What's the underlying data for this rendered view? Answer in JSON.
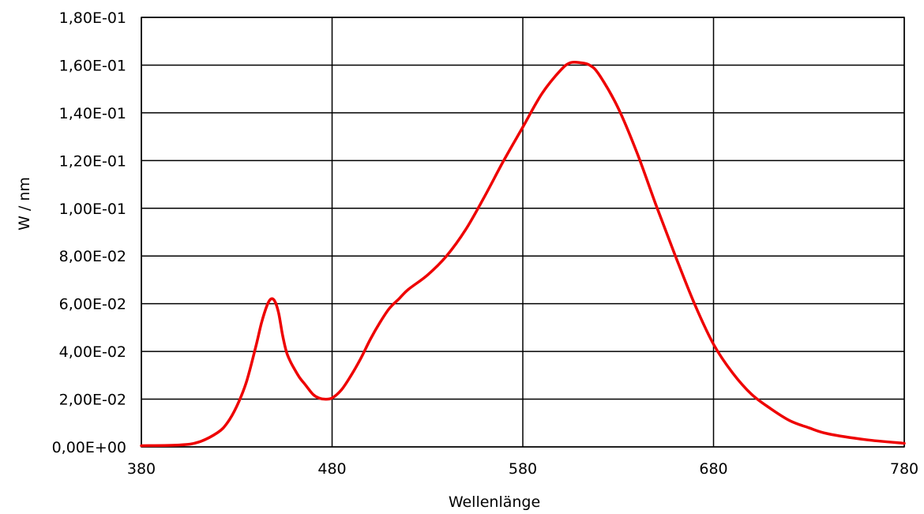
{
  "chart_data": {
    "type": "line",
    "title": "",
    "xlabel": "Wellenlänge",
    "ylabel": "W / nm",
    "xlim": [
      380,
      780
    ],
    "ylim": [
      0,
      0.18
    ],
    "x_ticks": [
      380,
      480,
      580,
      680,
      780
    ],
    "x_tick_labels": [
      "380",
      "480",
      "580",
      "680",
      "780"
    ],
    "y_ticks": [
      0,
      0.02,
      0.04,
      0.06,
      0.08,
      0.1,
      0.12,
      0.14,
      0.16,
      0.18
    ],
    "y_tick_labels": [
      "0,00E+00",
      "2,00E-02",
      "4,00E-02",
      "6,00E-02",
      "8,00E-02",
      "1,00E-01",
      "1,20E-01",
      "1,40E-01",
      "1,60E-01",
      "1,80E-01"
    ],
    "grid": true,
    "legend": "none",
    "series": [
      {
        "color": "#ee0000",
        "x": [
          380,
          400,
          410,
          420,
          425,
          430,
          435,
          440,
          443,
          446,
          448,
          450,
          452,
          454,
          456,
          458,
          460,
          463,
          466,
          470,
          473,
          476,
          480,
          485,
          490,
          495,
          500,
          505,
          510,
          515,
          520,
          530,
          540,
          550,
          560,
          570,
          580,
          590,
          600,
          605,
          610,
          615,
          620,
          630,
          640,
          650,
          660,
          670,
          680,
          690,
          700,
          710,
          720,
          730,
          740,
          760,
          780
        ],
        "y": [
          0.0005,
          0.0008,
          0.002,
          0.006,
          0.01,
          0.017,
          0.027,
          0.042,
          0.052,
          0.0595,
          0.062,
          0.061,
          0.056,
          0.047,
          0.04,
          0.036,
          0.033,
          0.029,
          0.026,
          0.022,
          0.0205,
          0.02,
          0.0205,
          0.024,
          0.03,
          0.037,
          0.045,
          0.052,
          0.058,
          0.062,
          0.066,
          0.072,
          0.08,
          0.091,
          0.105,
          0.12,
          0.134,
          0.148,
          0.158,
          0.161,
          0.161,
          0.16,
          0.156,
          0.142,
          0.123,
          0.101,
          0.08,
          0.06,
          0.043,
          0.031,
          0.022,
          0.016,
          0.011,
          0.008,
          0.0055,
          0.003,
          0.0015
        ]
      }
    ]
  }
}
